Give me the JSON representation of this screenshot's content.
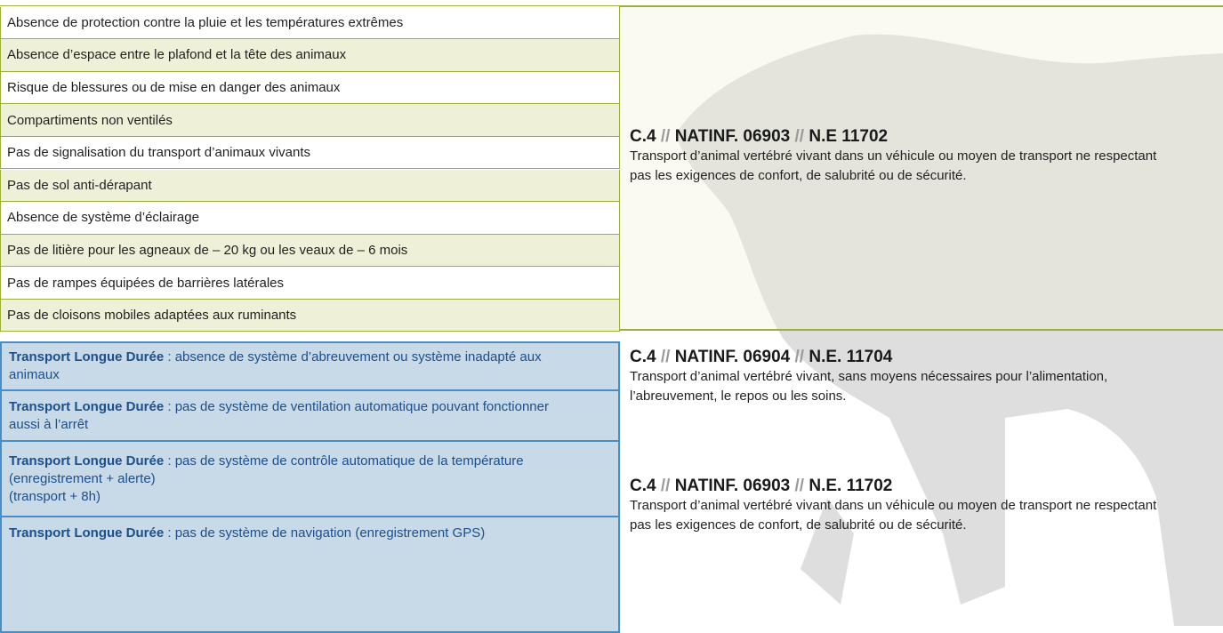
{
  "conditions": [
    "Absence de protection contre la pluie et les températures extrêmes",
    "Absence d’espace entre le plafond et la tête des animaux",
    "Risque de blessures ou de mise en danger des animaux",
    "Compartiments non ventilés",
    "Pas de signalisation du transport d’animaux vivants",
    "Pas de sol anti-dérapant",
    "Absence de système d’éclairage",
    "Pas de litière pour les agneaux de – 20 kg ou les veaux de – 6 mois",
    "Pas de rampes équipées de barrières latérales",
    "Pas de cloisons mobiles adaptées aux ruminants"
  ],
  "infraction_1": {
    "code": [
      "C.4",
      "//",
      "NATINF. 06903",
      "//",
      "N.E 11702"
    ],
    "text": "Transport d’animal vertébré vivant dans un véhicule ou moyen de transport ne respectant pas les exigences de confort, de salubrité ou de sécurité."
  },
  "long_duration": [
    {
      "label": "Transport Longue Durée",
      "text": ": absence de système d’abreuvement ou système inadapté aux animaux"
    },
    {
      "label": "Transport Longue Durée",
      "text": ": pas de système de ventilation automatique pouvant fonctionner aussi à l’arrêt"
    },
    {
      "label": "Transport Longue Durée",
      "text": ": pas de système de contrôle automatique de la température (enregistrement + alerte)",
      "note": "(transport + 8h)"
    },
    {
      "label": "Transport Longue Durée",
      "text": ": pas de système de navigation (enregistrement GPS)"
    }
  ],
  "infraction_2": {
    "code": [
      "C.4",
      "//",
      "NATINF. 06904",
      "//",
      "N.E. 11704"
    ],
    "text": "Transport d’animal vertébré vivant, sans moyens nécessaires pour l’alimentation, l’abreuvement, le repos ou les soins."
  },
  "infraction_3": {
    "code": [
      "C.4",
      "//",
      "NATINF. 06903",
      "//",
      "N.E. 11702"
    ],
    "text": "Transport d’animal vertébré vivant dans un véhicule ou moyen de transport ne respectant pas les exigences de confort, de salubrité ou de sécurité."
  }
}
